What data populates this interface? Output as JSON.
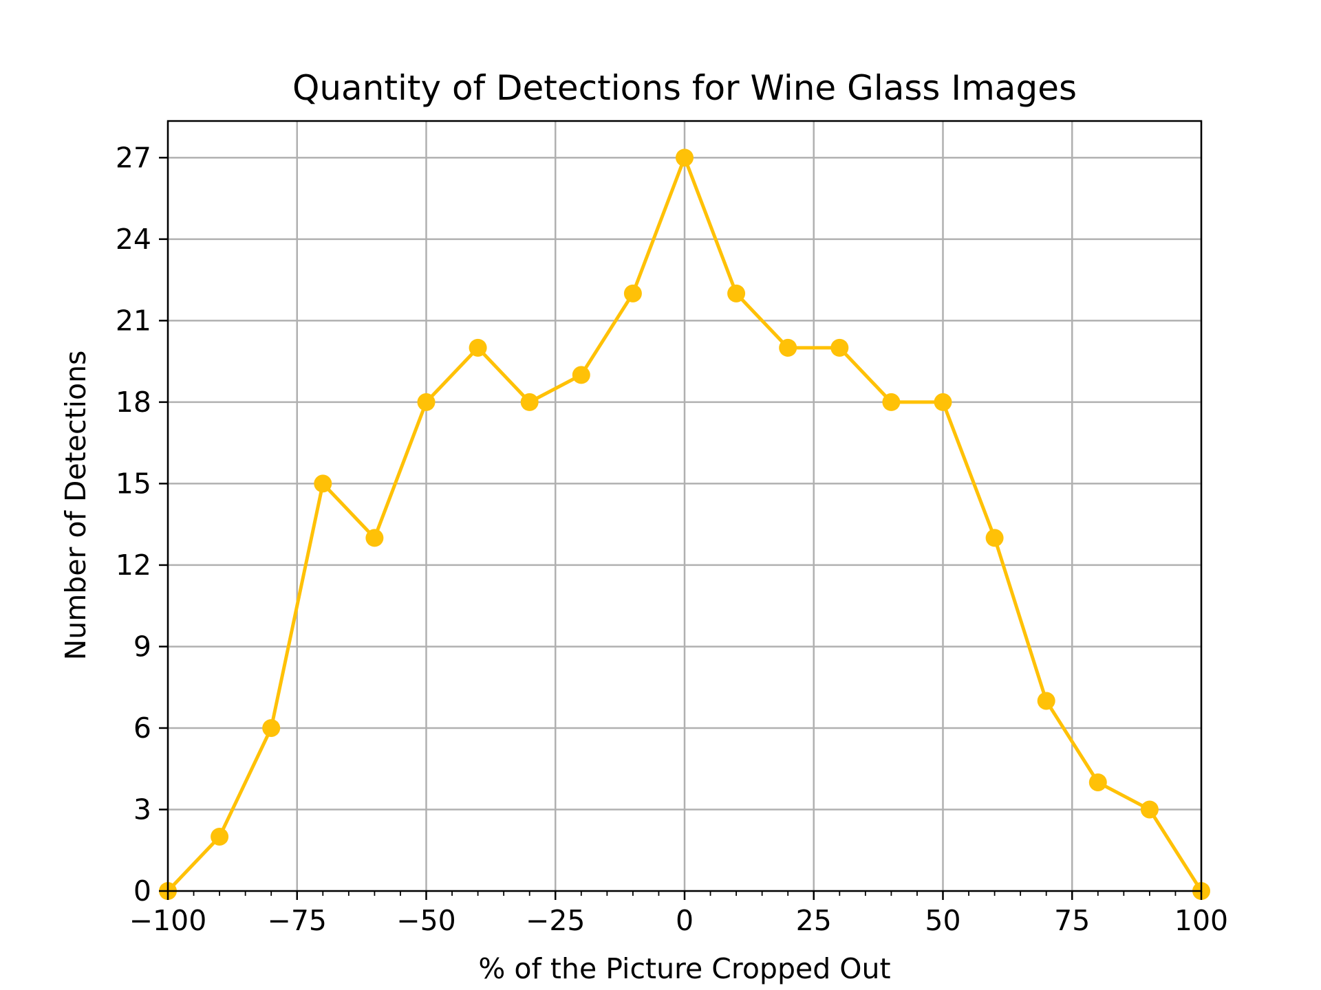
{
  "chart_data": {
    "type": "line",
    "title": "Quantity of Detections for Wine Glass Images",
    "xlabel": "% of the Picture Cropped Out",
    "ylabel": "Number of Detections",
    "xlim": [
      -100,
      100
    ],
    "ylim": [
      0,
      28.35
    ],
    "x_ticks": [
      -100,
      -75,
      -50,
      -25,
      0,
      25,
      50,
      75,
      100
    ],
    "x_tick_labels": [
      "−100",
      "−75",
      "−50",
      "−25",
      "0",
      "25",
      "50",
      "75",
      "100"
    ],
    "y_ticks": [
      0,
      3,
      6,
      9,
      12,
      15,
      18,
      21,
      24,
      27
    ],
    "y_tick_labels": [
      "0",
      "3",
      "6",
      "9",
      "12",
      "15",
      "18",
      "21",
      "24",
      "27"
    ],
    "grid": true,
    "series": [
      {
        "color": "#FFC107",
        "marker": "circle",
        "x": [
          -100,
          -90,
          -80,
          -70,
          -60,
          -50,
          -40,
          -30,
          -20,
          -10,
          0,
          10,
          20,
          30,
          40,
          50,
          60,
          70,
          80,
          90,
          100
        ],
        "y": [
          0,
          2,
          6,
          15,
          13,
          18,
          20,
          18,
          19,
          22,
          27,
          22,
          20,
          20,
          18,
          18,
          13,
          7,
          4,
          3,
          0
        ]
      }
    ]
  }
}
